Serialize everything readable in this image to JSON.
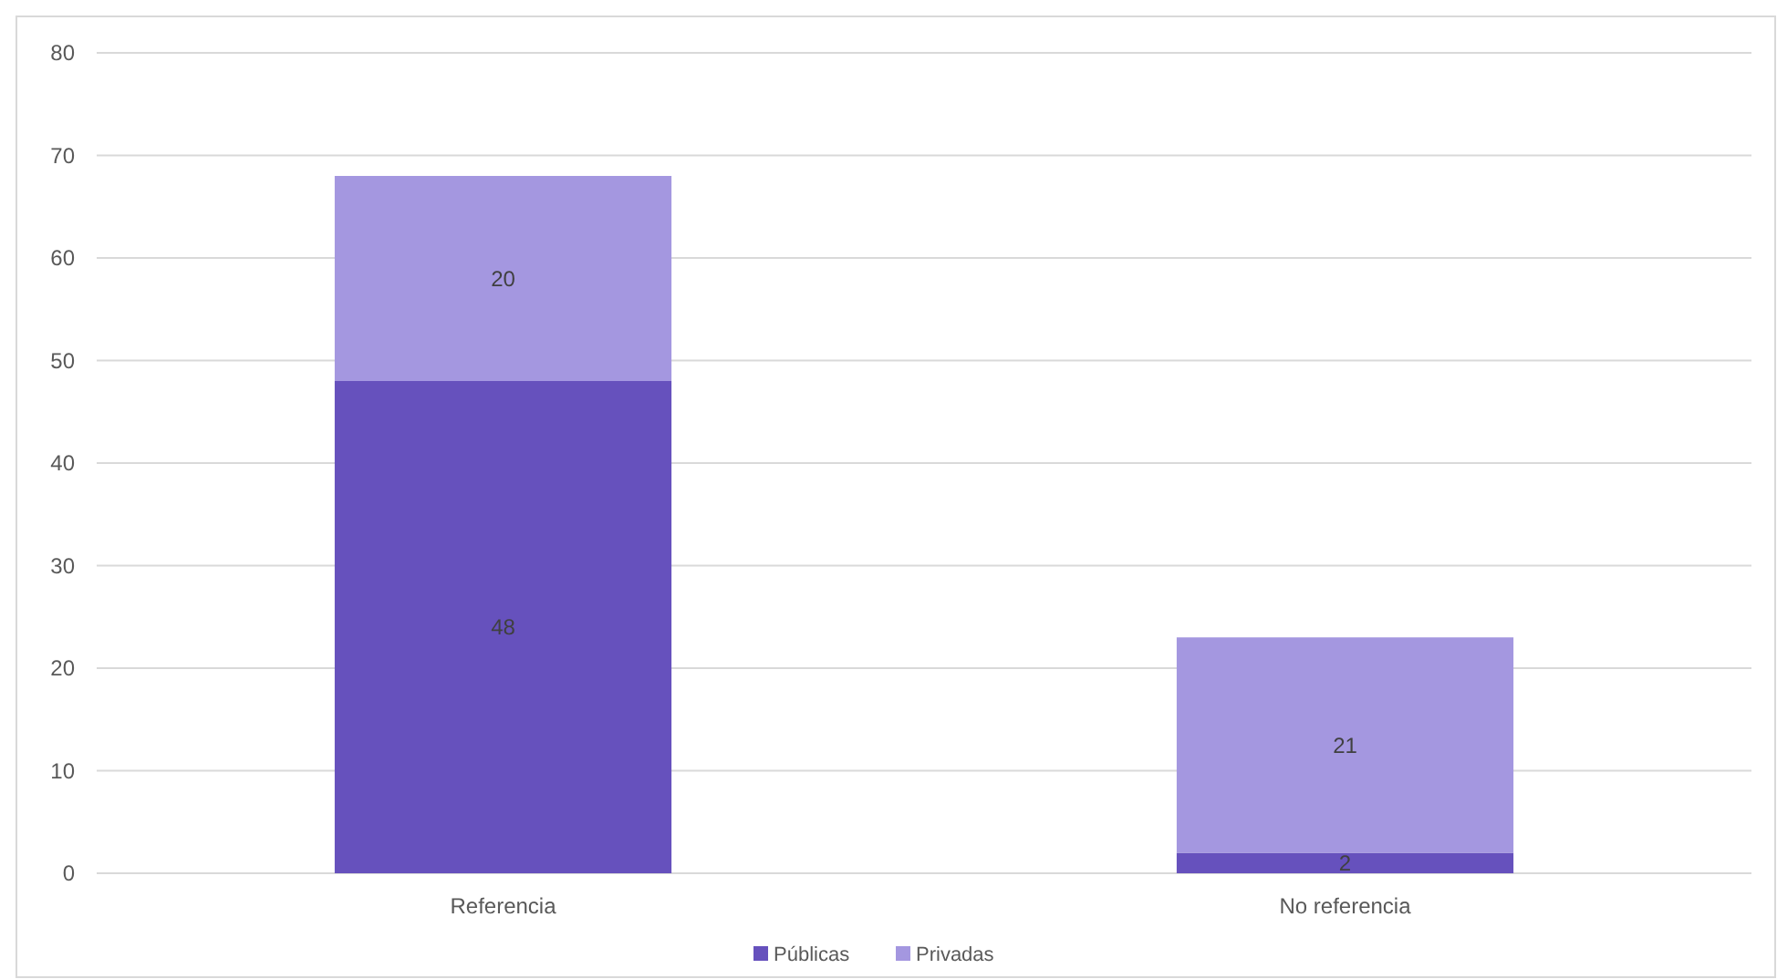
{
  "chart_data": {
    "type": "bar",
    "stacked": true,
    "categories": [
      "Referencia",
      "No referencia"
    ],
    "series": [
      {
        "name": "Públicas",
        "color": "#6651bd",
        "values": [
          48,
          2
        ]
      },
      {
        "name": "Privadas",
        "color": "#a497e0",
        "values": [
          20,
          21
        ]
      }
    ],
    "ylim": [
      0,
      80
    ],
    "yticks": [
      0,
      10,
      20,
      30,
      40,
      50,
      60,
      70,
      80
    ],
    "grid": "y",
    "legend": "bottom",
    "data_labels": true
  }
}
